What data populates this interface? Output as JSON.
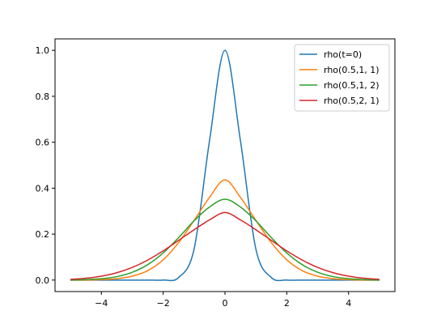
{
  "chart_data": {
    "type": "line",
    "title": "",
    "xlabel": "",
    "ylabel": "",
    "xlim": [
      -5.5,
      5.5
    ],
    "ylim": [
      -0.05,
      1.05
    ],
    "xticks": [
      -4,
      -2,
      0,
      2,
      4
    ],
    "xtick_labels": [
      "−4",
      "−2",
      "0",
      "2",
      "4"
    ],
    "yticks": [
      0.0,
      0.2,
      0.4,
      0.6,
      0.8,
      1.0
    ],
    "ytick_labels": [
      "0.0",
      "0.2",
      "0.4",
      "0.6",
      "0.8",
      "1.0"
    ],
    "grid": false,
    "legend_position": "upper-right",
    "x": [
      -5,
      -4.5,
      -4,
      -3.5,
      -3,
      -2.5,
      -2,
      -1.5,
      -1,
      -0.5,
      0,
      0.5,
      1,
      1.5,
      2,
      2.5,
      3,
      3.5,
      4,
      4.5,
      5
    ],
    "series": [
      {
        "name": "rho(t=0)",
        "color": "#1f77b4",
        "values": [
          0.0,
          0.0,
          0.0,
          0.0,
          0.0,
          0.0,
          0.0,
          0.011,
          0.135,
          0.607,
          1.0,
          0.607,
          0.135,
          0.011,
          0.0,
          0.0,
          0.0,
          0.0,
          0.0,
          0.0,
          0.0
        ]
      },
      {
        "name": "rho(0.5,1, 1)",
        "color": "#ff7f0e",
        "values": [
          0.0,
          0.0,
          0.002,
          0.006,
          0.017,
          0.041,
          0.088,
          0.163,
          0.26,
          0.36,
          0.436,
          0.36,
          0.26,
          0.163,
          0.088,
          0.041,
          0.017,
          0.006,
          0.002,
          0.0,
          0.0
        ]
      },
      {
        "name": "rho(0.5,1, 2)",
        "color": "#2ca02c",
        "values": [
          0.0,
          0.002,
          0.006,
          0.015,
          0.034,
          0.067,
          0.118,
          0.185,
          0.258,
          0.318,
          0.352,
          0.318,
          0.258,
          0.185,
          0.118,
          0.067,
          0.034,
          0.015,
          0.006,
          0.002,
          0.0
        ]
      },
      {
        "name": "rho(0.5,2, 1)",
        "color": "#d62728",
        "values": [
          0.003,
          0.008,
          0.017,
          0.032,
          0.055,
          0.087,
          0.127,
          0.173,
          0.219,
          0.262,
          0.294,
          0.262,
          0.219,
          0.173,
          0.127,
          0.087,
          0.055,
          0.032,
          0.017,
          0.008,
          0.003
        ]
      }
    ]
  }
}
